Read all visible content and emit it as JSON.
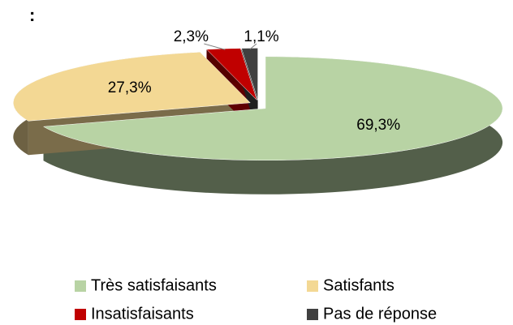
{
  "chart_data": {
    "type": "pie3d",
    "title": ":",
    "categories": [
      "Très satisfaisants",
      "Satisfants",
      "Insatisfaisants",
      "Pas de réponse"
    ],
    "values": [
      69.3,
      27.3,
      2.3,
      1.1
    ],
    "value_labels": [
      "69,3%",
      "27,3%",
      "2,3%",
      "1,1%"
    ],
    "colors": [
      "#b8d3a4",
      "#f3d894",
      "#c00000",
      "#404040"
    ],
    "legend": "bottom"
  }
}
